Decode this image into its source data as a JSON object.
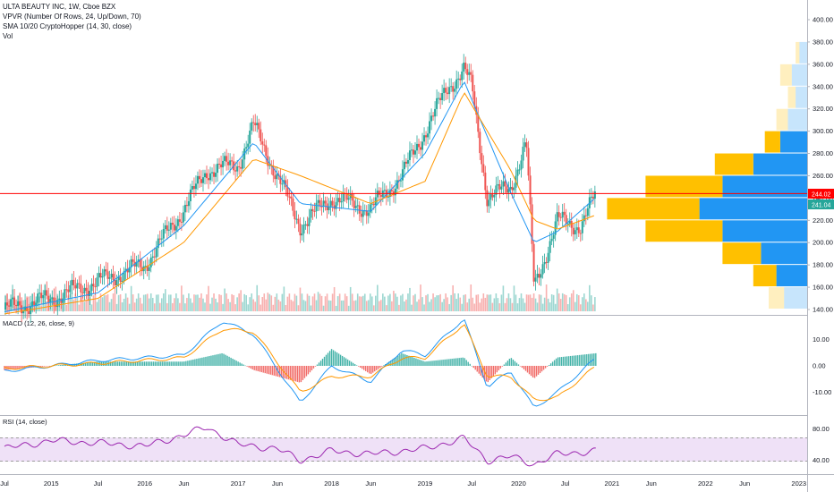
{
  "header": {
    "symbol_line": "ULTA BEAUTY INC, 1W, Cboe BZX",
    "vpvr_label": "VPVR (Number Of Rows, 24, Up/Down, 70)",
    "sma_label": "SMA 10/20 CryptoHopper (14, 30, close)",
    "vol_label": "Vol"
  },
  "macd_label": "MACD (12, 26, close, 9)",
  "rsi_label": "RSI (14, close)",
  "colors": {
    "up": "#26a69a",
    "down": "#ef5350",
    "macd_line": "#2196f3",
    "signal_line": "#ff9800",
    "sma_fast": "#2196f3",
    "sma_slow": "#ff9800",
    "price_line": "#ff0000",
    "vpvr_up": "#2196f3",
    "vpvr_down": "#ffc000",
    "rsi_band": "#e9d5f5",
    "rsi_line": "#9c27b0"
  },
  "price_axis": {
    "ticks": [
      "400.00",
      "380.00",
      "360.00",
      "340.00",
      "320.00",
      "300.00",
      "280.00",
      "260.00",
      "240.00",
      "220.00",
      "200.00",
      "180.00",
      "160.00",
      "140.00"
    ],
    "last_price_label": "244.02",
    "sma_label": "241.04"
  },
  "macd_axis": {
    "ticks": [
      "10.00",
      "0.00",
      "-10.00"
    ]
  },
  "rsi_axis": {
    "ticks": [
      "80.00",
      "40.00"
    ]
  },
  "time_axis": {
    "ticks": [
      "Jul",
      "2015",
      "Jul",
      "2016",
      "Jun",
      "2017",
      "Jun",
      "2018",
      "Jun",
      "2019",
      "Jul",
      "2020",
      "Jul",
      "2021",
      "Jun",
      "2022",
      "Jun",
      "2023"
    ]
  },
  "chart_data": [
    {
      "type": "line",
      "title": "ULTA BEAUTY INC, 1W, Cboe BZX",
      "ylim": [
        135,
        410
      ],
      "last_price": 244.02,
      "sma_value": 241.04,
      "series": [
        {
          "name": "close",
          "x": [
            "2014-07",
            "2015-01",
            "2015-07",
            "2016-01",
            "2016-06",
            "2016-09",
            "2017-01",
            "2017-03",
            "2017-06",
            "2017-09",
            "2018-01",
            "2018-06",
            "2018-10",
            "2019-01",
            "2019-04",
            "2019-06",
            "2019-07",
            "2019-09",
            "2019-12",
            "2020-02",
            "2020-03",
            "2020-06",
            "2020-09",
            "2020-11"
          ],
          "values": [
            140,
            150,
            165,
            180,
            230,
            265,
            270,
            305,
            260,
            215,
            240,
            230,
            260,
            300,
            340,
            355,
            340,
            240,
            250,
            290,
            160,
            220,
            215,
            244
          ]
        },
        {
          "name": "SMA 14",
          "x": [
            "2014-07",
            "2015-07",
            "2016-06",
            "2017-03",
            "2017-09",
            "2018-06",
            "2019-01",
            "2019-06",
            "2019-12",
            "2020-03",
            "2020-06",
            "2020-11"
          ],
          "values": [
            138,
            155,
            215,
            290,
            235,
            228,
            280,
            345,
            245,
            200,
            210,
            241
          ]
        },
        {
          "name": "SMA 30",
          "x": [
            "2014-07",
            "2015-07",
            "2016-06",
            "2017-03",
            "2017-09",
            "2018-06",
            "2019-01",
            "2019-06",
            "2019-12",
            "2020-03",
            "2020-06",
            "2020-11"
          ],
          "values": [
            136,
            150,
            200,
            275,
            260,
            235,
            255,
            335,
            265,
            220,
            212,
            225
          ]
        }
      ]
    },
    {
      "type": "bar",
      "title": "VPVR (Number Of Rows, 24, Up/Down, 70)",
      "categories": [
        370,
        350,
        330,
        310,
        290,
        270,
        250,
        230,
        210,
        190,
        170,
        150
      ],
      "series": [
        {
          "name": "Up",
          "values": [
            2,
            4,
            3,
            5,
            7,
            14,
            22,
            28,
            22,
            12,
            8,
            6
          ]
        },
        {
          "name": "Down",
          "values": [
            1,
            3,
            2,
            3,
            4,
            10,
            20,
            24,
            20,
            10,
            6,
            4
          ]
        }
      ]
    },
    {
      "type": "line",
      "title": "MACD (12, 26, close, 9)",
      "ylim": [
        -18,
        19
      ],
      "series": [
        {
          "name": "MACD",
          "x": [
            "2014-07",
            "2015-07",
            "2016-06",
            "2016-11",
            "2017-03",
            "2017-09",
            "2018-01",
            "2018-06",
            "2018-10",
            "2019-01",
            "2019-06",
            "2019-09",
            "2019-12",
            "2020-03",
            "2020-06",
            "2020-11"
          ],
          "values": [
            -2,
            2,
            4,
            17,
            12,
            -14,
            0,
            -6,
            6,
            4,
            18,
            -8,
            -2,
            -16,
            -10,
            3
          ]
        },
        {
          "name": "Signal",
          "x": [
            "2014-07",
            "2015-07",
            "2016-06",
            "2016-11",
            "2017-03",
            "2017-09",
            "2018-01",
            "2018-06",
            "2018-10",
            "2019-01",
            "2019-06",
            "2019-09",
            "2019-12",
            "2020-03",
            "2020-06",
            "2020-11"
          ],
          "values": [
            -1,
            1,
            3,
            14,
            13,
            -10,
            -4,
            -4,
            3,
            3,
            16,
            -4,
            -4,
            -13,
            -12,
            0
          ]
        }
      ]
    },
    {
      "type": "line",
      "title": "RSI (14, close)",
      "ylim": [
        25,
        95
      ],
      "series": [
        {
          "name": "RSI",
          "x": [
            "2014-07",
            "2015-01",
            "2015-07",
            "2016-01",
            "2016-06",
            "2016-09",
            "2017-01",
            "2017-06",
            "2017-09",
            "2018-01",
            "2018-06",
            "2019-01",
            "2019-06",
            "2019-09",
            "2019-12",
            "2020-03",
            "2020-06",
            "2020-11"
          ],
          "values": [
            55,
            65,
            62,
            58,
            72,
            82,
            60,
            55,
            40,
            52,
            48,
            55,
            68,
            40,
            45,
            35,
            48,
            52
          ]
        }
      ]
    }
  ]
}
